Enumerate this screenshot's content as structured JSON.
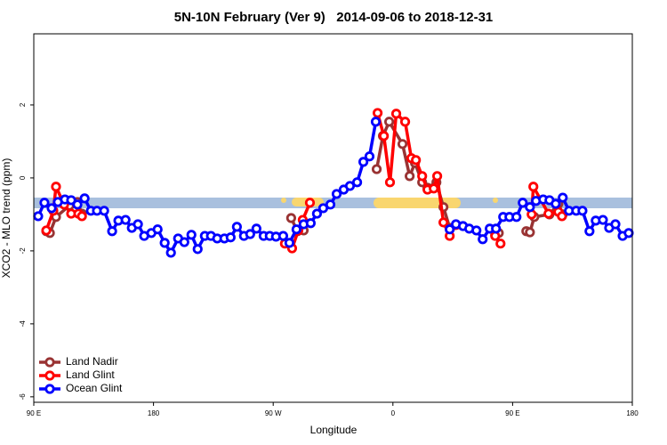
{
  "chart_data": {
    "type": "line",
    "title": "5N-10N February (Ver 9)   2014-09-06 to 2018-12-31",
    "x_label": "Longitude",
    "y_label": "XCO2 - MLO trend (ppm)",
    "xlim": [
      -270,
      180
    ],
    "ylim": [
      -6.15,
      3.95
    ],
    "xticks": [
      {
        "value": -270,
        "label": "90 E"
      },
      {
        "value": -180,
        "label": "180"
      },
      {
        "value": -90,
        "label": "90 W"
      },
      0,
      {
        "value": 90,
        "label": "90 E"
      },
      {
        "value": 180,
        "label": "180"
      }
    ],
    "yticks": [
      -6,
      -4,
      -2,
      0,
      2
    ],
    "legend": "bottom-left",
    "series": [
      {
        "name": "Land Nadir",
        "color": "#993333",
        "x": [
          -260.6,
          -257.9,
          -253.3,
          -243.2,
          -237.2,
          -233.8,
          null,
          -76.5,
          -71.8,
          -67.1,
          null,
          -12.2,
          -7.5,
          -2.8,
          7.2,
          12.6,
          16.6,
          22.0,
          26.0,
          32.7,
          38.0,
          42.7,
          null,
          76.9,
          79.6,
          null,
          100.3,
          103.0,
          106.3,
          117.7,
          124.4,
          127.7
        ],
        "values": [
          -1.46,
          -1.51,
          -1.07,
          -0.76,
          -0.66,
          -0.98,
          null,
          -1.1,
          -1.46,
          -1.44,
          null,
          0.24,
          1.15,
          1.54,
          0.93,
          0.05,
          0.41,
          -0.12,
          -0.27,
          -0.12,
          -0.8,
          -1.37,
          null,
          -1.56,
          -1.51,
          null,
          -1.46,
          -1.49,
          -1.07,
          -1.0,
          -0.71,
          -1.0
        ]
      },
      {
        "name": "Land Glint",
        "color": "#ff0000",
        "x": [
          -260.6,
          -255.3,
          -253.3,
          -247.2,
          -241.9,
          -236.5,
          -233.8,
          null,
          -81.2,
          -75.8,
          -71.1,
          -67.8,
          -62.4,
          null,
          -11.5,
          -6.8,
          -2.2,
          2.5,
          9.2,
          13.9,
          17.3,
          22.0,
          26.0,
          30.7,
          33.3,
          38.0,
          42.7,
          47.4,
          null,
          76.9,
          80.9,
          null,
          104.3,
          105.6,
          117.0,
          124.4,
          127.1
        ],
        "values": [
          -1.44,
          -0.9,
          -0.24,
          -0.73,
          -0.98,
          -0.98,
          -1.05,
          null,
          -1.8,
          -1.93,
          -1.44,
          -1.15,
          -0.68,
          null,
          1.78,
          1.15,
          -0.12,
          1.76,
          1.54,
          0.54,
          0.49,
          0.05,
          -0.32,
          -0.29,
          0.05,
          -1.22,
          -1.59,
          -1.29,
          null,
          -1.59,
          -1.8,
          null,
          -1.0,
          -0.24,
          -0.98,
          -0.93,
          -1.05
        ]
      },
      {
        "name": "Ocean Glint",
        "color": "#0000ff",
        "x": [
          -266.7,
          -262.0,
          -256.6,
          -251.9,
          -246.6,
          -241.9,
          -237.2,
          -231.8,
          -227.1,
          -222.5,
          -217.1,
          -211.1,
          -206.4,
          -201.0,
          -196.3,
          -191.7,
          -187.0,
          -181.6,
          -176.9,
          -171.6,
          -166.9,
          -161.5,
          -156.8,
          -151.5,
          -146.8,
          -141.4,
          -136.8,
          -132.1,
          -126.7,
          -122.0,
          -117.3,
          -112.0,
          -107.3,
          -102.6,
          -97.2,
          -92.6,
          -87.9,
          -82.5,
          -77.8,
          -72.5,
          -67.1,
          -61.8,
          -57.1,
          -52.4,
          -47.0,
          -42.3,
          -37.0,
          -32.3,
          -26.9,
          -22.2,
          -17.6,
          -12.9,
          null,
          42.7,
          47.4,
          52.7,
          57.4,
          62.8,
          67.5,
          72.8,
          77.5,
          82.9,
          87.6,
          92.9,
          97.6,
          103.0,
          107.6,
          113.0,
          117.7,
          122.4,
          127.7,
          132.4,
          137.8,
          142.5,
          147.8,
          152.5,
          157.9,
          162.6,
          167.3,
          172.7,
          177.3
        ],
        "values": [
          -1.05,
          -0.68,
          -0.83,
          -0.66,
          -0.59,
          -0.61,
          -0.73,
          -0.56,
          -0.9,
          -0.9,
          -0.9,
          -1.46,
          -1.17,
          -1.15,
          -1.37,
          -1.27,
          -1.59,
          -1.51,
          -1.41,
          -1.78,
          -2.05,
          -1.66,
          -1.76,
          -1.56,
          -1.95,
          -1.59,
          -1.59,
          -1.66,
          -1.66,
          -1.63,
          -1.34,
          -1.59,
          -1.54,
          -1.39,
          -1.59,
          -1.59,
          -1.61,
          -1.59,
          -1.78,
          -1.41,
          -1.27,
          -1.24,
          -0.98,
          -0.83,
          -0.73,
          -0.44,
          -0.32,
          -0.22,
          -0.12,
          0.44,
          0.59,
          1.54,
          null,
          -1.41,
          -1.27,
          -1.32,
          -1.39,
          -1.44,
          -1.68,
          -1.39,
          -1.39,
          -1.07,
          -1.07,
          -1.07,
          -0.68,
          -0.8,
          -0.63,
          -0.59,
          -0.61,
          -0.71,
          -0.54,
          -0.9,
          -0.9,
          -0.9,
          -1.46,
          -1.17,
          -1.15,
          -1.37,
          -1.27,
          -1.59,
          -1.51
        ]
      }
    ]
  }
}
